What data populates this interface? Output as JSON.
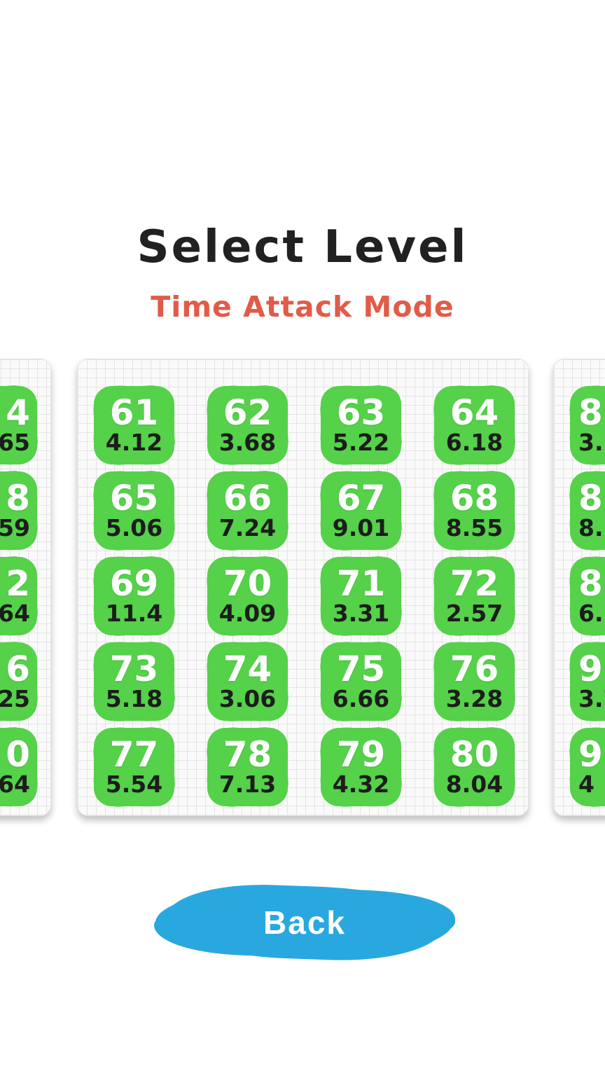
{
  "title": "Select Level",
  "subtitle": "Time Attack Mode",
  "back_button": {
    "label": "Back"
  },
  "colors": {
    "tile_green": "#55d14a",
    "subtitle_red": "#e25b49",
    "back_blue": "#29a8e0",
    "title_ink": "#212121",
    "time_ink": "#1c1c1c"
  },
  "main_page": {
    "levels": [
      {
        "level": "61",
        "time": "4.12"
      },
      {
        "level": "62",
        "time": "3.68"
      },
      {
        "level": "63",
        "time": "5.22"
      },
      {
        "level": "64",
        "time": "6.18"
      },
      {
        "level": "65",
        "time": "5.06"
      },
      {
        "level": "66",
        "time": "7.24"
      },
      {
        "level": "67",
        "time": "9.01"
      },
      {
        "level": "68",
        "time": "8.55"
      },
      {
        "level": "69",
        "time": "11.4"
      },
      {
        "level": "70",
        "time": "4.09"
      },
      {
        "level": "71",
        "time": "3.31"
      },
      {
        "level": "72",
        "time": "2.57"
      },
      {
        "level": "73",
        "time": "5.18"
      },
      {
        "level": "74",
        "time": "3.06"
      },
      {
        "level": "75",
        "time": "6.66"
      },
      {
        "level": "76",
        "time": "3.28"
      },
      {
        "level": "77",
        "time": "5.54"
      },
      {
        "level": "78",
        "time": "7.13"
      },
      {
        "level": "79",
        "time": "4.32"
      },
      {
        "level": "80",
        "time": "8.04"
      }
    ]
  },
  "left_page_partial": {
    "tiles": [
      {
        "level_fragment": "4",
        "time_fragment": "65"
      },
      {
        "level_fragment": "8",
        "time_fragment": "59"
      },
      {
        "level_fragment": "2",
        "time_fragment": "64"
      },
      {
        "level_fragment": "6",
        "time_fragment": "25"
      },
      {
        "level_fragment": "0",
        "time_fragment": "64"
      }
    ]
  },
  "right_page_partial": {
    "tiles": [
      {
        "level_fragment": "8",
        "time_fragment": "3.2"
      },
      {
        "level_fragment": "8",
        "time_fragment": "8.1"
      },
      {
        "level_fragment": "8",
        "time_fragment": "6."
      },
      {
        "level_fragment": "9",
        "time_fragment": "3.7"
      },
      {
        "level_fragment": "9",
        "time_fragment": "4"
      }
    ]
  }
}
